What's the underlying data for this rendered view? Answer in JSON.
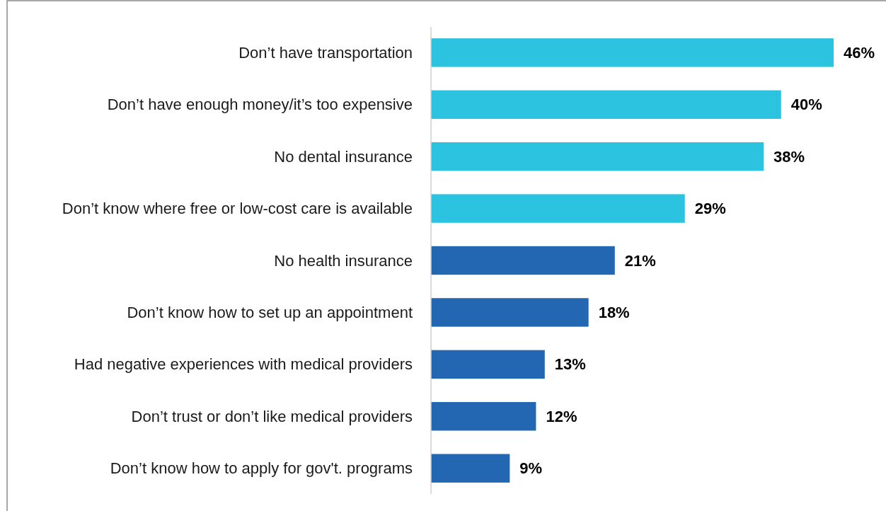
{
  "chart_data": {
    "type": "bar",
    "orientation": "horizontal",
    "value_labels": [
      "46%",
      "40%",
      "38%",
      "29%",
      "21%",
      "18%",
      "13%",
      "12%",
      "9%"
    ],
    "categories": [
      "Don’t have transportation",
      "Don’t have enough money/it’s too expensive",
      "No dental insurance",
      "Don’t know where free or low-cost care is available",
      "No health insurance",
      "Don’t know how to set up an appointment",
      "Had negative experiences with medical providers",
      "Don’t trust or don’t like medical providers",
      "Don’t know how to apply for gov't. programs"
    ],
    "values": [
      46,
      40,
      38,
      29,
      21,
      18,
      13,
      12,
      9
    ],
    "colors": [
      "#2cc3e0",
      "#2cc3e0",
      "#2cc3e0",
      "#2cc3e0",
      "#2367b3",
      "#2367b3",
      "#2367b3",
      "#2367b3",
      "#2367b3"
    ]
  }
}
